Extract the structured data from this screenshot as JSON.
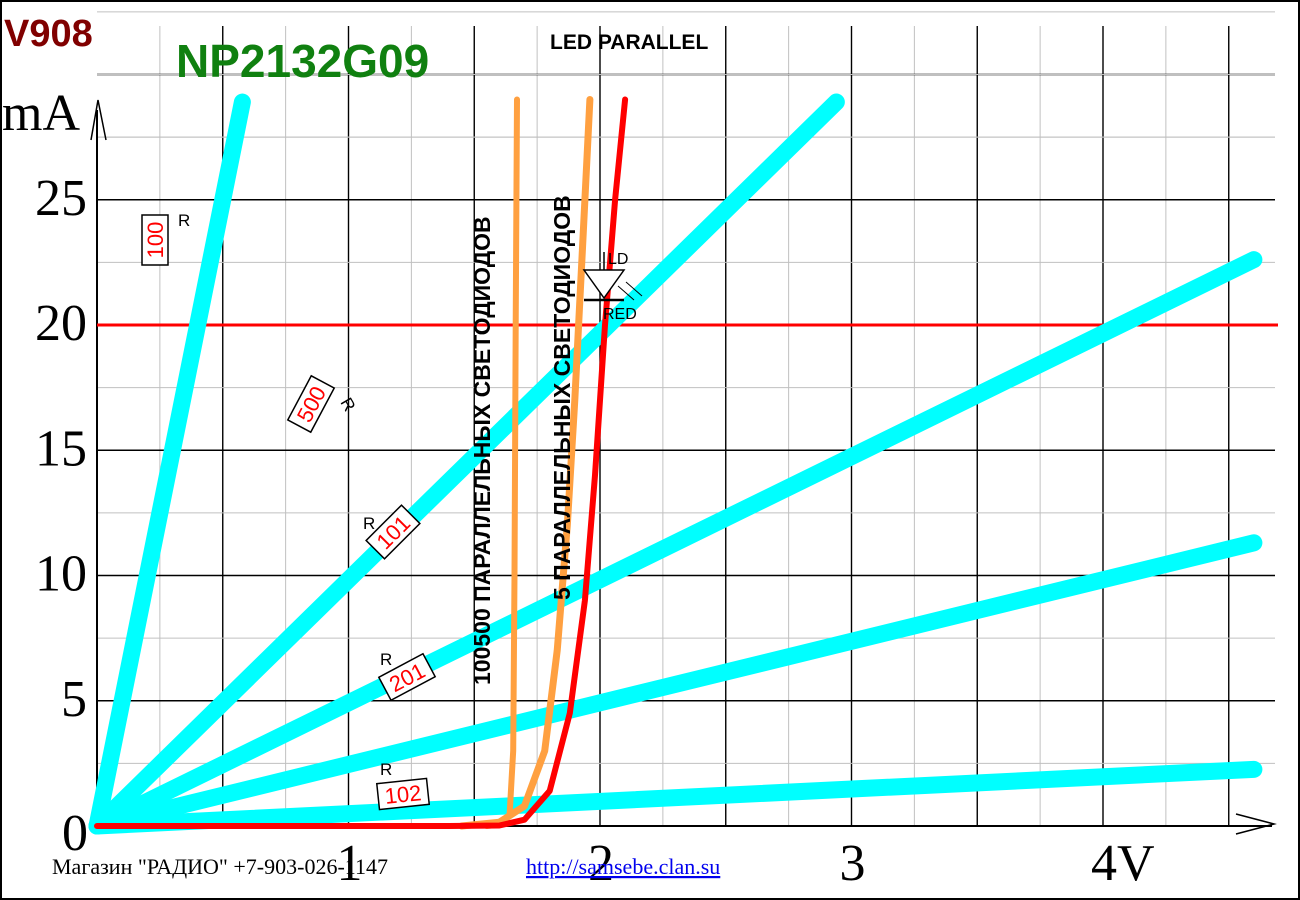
{
  "header": {
    "model_code": "V908",
    "part_number": "NP2132G09",
    "mode": "LED PARALLEL"
  },
  "footer": {
    "shop": "Магазин \"РАДИО\" +7-903-026-1147",
    "url": "http://samsebe.clan.su"
  },
  "colors": {
    "grid_minor": "#c0c0c0",
    "grid_major": "#000000",
    "resistor_lines": "#00ffff",
    "led_curve": "#ff0000",
    "parallel_curves": "#ffa040",
    "model_code": "#800000",
    "part_number": "#108010",
    "footer_link": "#0000ee",
    "resistor_value_text": "#ff0000"
  },
  "chart_data": {
    "type": "line",
    "title": "LED PARALLEL",
    "xlabel": "V",
    "ylabel": "mA",
    "xlim": [
      0,
      4.5
    ],
    "ylim": [
      0,
      28
    ],
    "x_ticks": [
      {
        "value": 0,
        "label": "0"
      },
      {
        "value": 1,
        "label": "1"
      },
      {
        "value": 2,
        "label": "2"
      },
      {
        "value": 3,
        "label": "3"
      },
      {
        "value": 4,
        "label": "4V"
      }
    ],
    "y_ticks": [
      {
        "value": 5,
        "label": "5"
      },
      {
        "value": 10,
        "label": "10"
      },
      {
        "value": 15,
        "label": "15"
      },
      {
        "value": 20,
        "label": "20"
      },
      {
        "value": 25,
        "label": "25"
      }
    ],
    "y_unit_label": "mA",
    "grid": true,
    "reference_lines": [
      {
        "axis": "y",
        "value": 20,
        "color": "#ff0000"
      }
    ],
    "resistor_lines": [
      {
        "label": "R",
        "value": "100",
        "points": [
          [
            0,
            0
          ],
          [
            0.58,
            29
          ]
        ]
      },
      {
        "label": "R",
        "value": "500",
        "points": [
          [
            0,
            0
          ],
          [
            2.95,
            29
          ]
        ]
      },
      {
        "label": "R",
        "value": "101",
        "points": [
          [
            0,
            0
          ],
          [
            5.9,
            29
          ]
        ]
      },
      {
        "label": "R",
        "value": "201",
        "points": [
          [
            0,
            0
          ],
          [
            11.8,
            29
          ]
        ]
      },
      {
        "label": "R",
        "value": "102",
        "points": [
          [
            0,
            0
          ],
          [
            59,
            29
          ]
        ]
      }
    ],
    "led": {
      "label": "LD",
      "name": "RED"
    },
    "series": [
      {
        "name": "",
        "color": "#ff0000",
        "points": [
          [
            0,
            0
          ],
          [
            1.4,
            0
          ],
          [
            1.6,
            0.02
          ],
          [
            1.7,
            0.25
          ],
          [
            1.8,
            1.4
          ],
          [
            1.88,
            4.5
          ],
          [
            1.94,
            9
          ],
          [
            1.98,
            14
          ],
          [
            2.02,
            20
          ],
          [
            2.06,
            25
          ],
          [
            2.1,
            29
          ]
        ]
      },
      {
        "name": "5 ПАРАЛЛЕЛЬНЫХ СВЕТОДИОДОВ",
        "color": "#ffa040",
        "points": [
          [
            1.45,
            0
          ],
          [
            1.6,
            0.15
          ],
          [
            1.7,
            0.8
          ],
          [
            1.78,
            3
          ],
          [
            1.83,
            7
          ],
          [
            1.87,
            12
          ],
          [
            1.9,
            17
          ],
          [
            1.93,
            23
          ],
          [
            1.96,
            29
          ]
        ]
      },
      {
        "name": "100500 ПАРАЛЛЕЛЬНЫХ СВЕТОДИОДОВ",
        "color": "#ffa040",
        "points": [
          [
            1.55,
            0
          ],
          [
            1.6,
            0.05
          ],
          [
            1.64,
            0.4
          ],
          [
            1.655,
            3
          ],
          [
            1.66,
            10
          ],
          [
            1.665,
            20
          ],
          [
            1.67,
            29
          ]
        ]
      }
    ]
  }
}
